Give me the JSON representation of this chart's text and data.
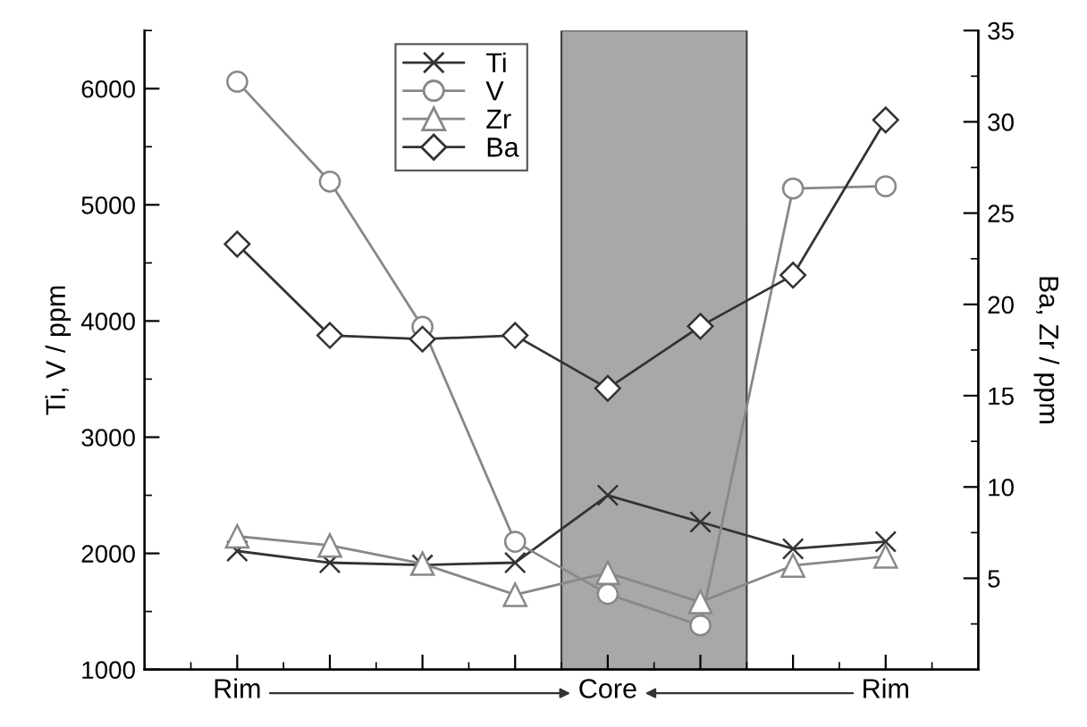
{
  "chart_data": {
    "type": "line",
    "ylabel": "Ti, V / ppm",
    "y2label": "Ba, Zr / ppm",
    "categories": [
      "Rim",
      null,
      null,
      null,
      "Core",
      null,
      null,
      "Rim"
    ],
    "series": [
      {
        "name": "Ti",
        "color": "#333333",
        "marker": "cross",
        "values": [
          2020,
          1920,
          1900,
          1920,
          2500,
          2270,
          2040,
          2100
        ]
      },
      {
        "name": "V",
        "color": "#888888",
        "marker": "circle",
        "values": [
          6060,
          5200,
          3950,
          2100,
          1650,
          1380,
          5140,
          5160
        ]
      },
      {
        "name": "Zr",
        "color": "#888888",
        "marker": "triangle",
        "axis": "y2",
        "values": [
          7.3,
          6.8,
          5.8,
          4.1,
          5.3,
          3.7,
          5.7,
          6.2
        ]
      },
      {
        "name": "Ba",
        "color": "#333333",
        "marker": "diamond",
        "axis": "y2",
        "values": [
          23.3,
          18.3,
          18.1,
          18.3,
          15.4,
          18.8,
          21.6,
          30.1
        ]
      }
    ],
    "ylim": [
      1000,
      6500
    ],
    "yticks": [
      1000,
      2000,
      3000,
      4000,
      5000,
      6000
    ],
    "y2lim": [
      0,
      35
    ],
    "y2ticks": [
      5,
      10,
      15,
      20,
      25,
      30,
      35
    ],
    "legend": "top",
    "grid": false,
    "line_style": "solid"
  }
}
